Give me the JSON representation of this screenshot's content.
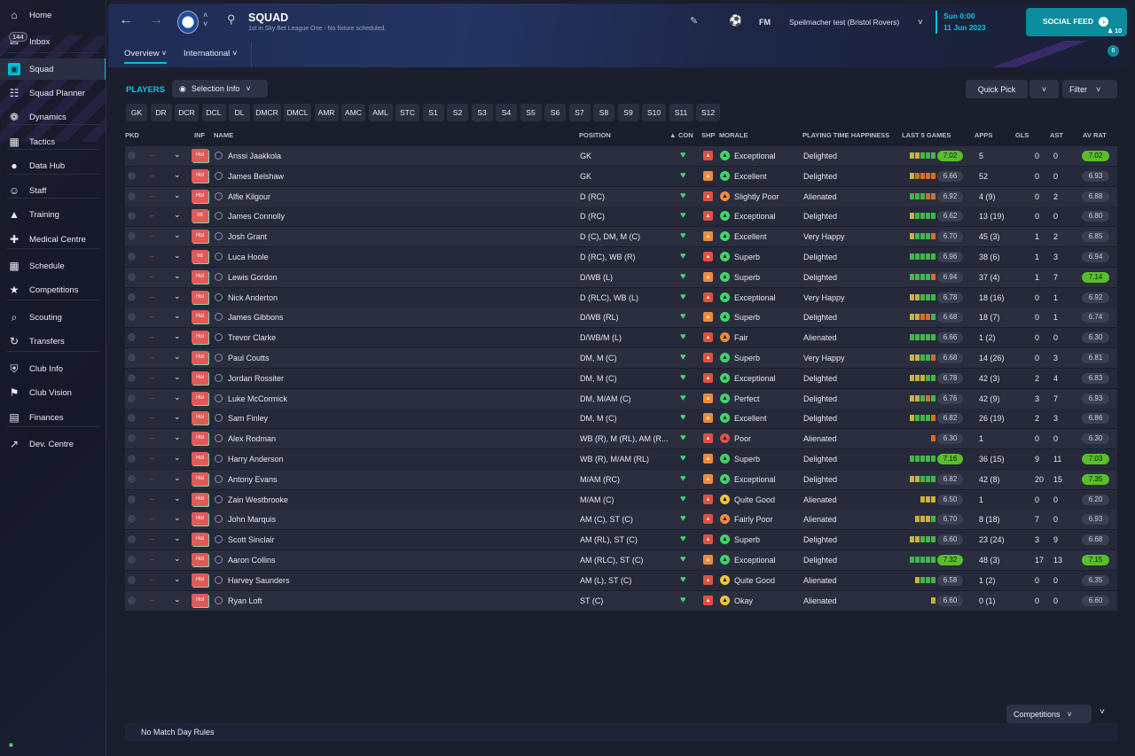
{
  "sidebar": {
    "items": [
      {
        "label": "Home",
        "icon": "home-icon"
      },
      {
        "label": "Inbox",
        "icon": "inbox-icon",
        "badge": "144"
      },
      {
        "label": "Squad",
        "icon": "squad-icon"
      },
      {
        "label": "Squad Planner",
        "icon": "clipboard-icon"
      },
      {
        "label": "Dynamics",
        "icon": "dynamics-icon"
      },
      {
        "label": "Tactics",
        "icon": "tactics-icon"
      },
      {
        "label": "Data Hub",
        "icon": "data-hub-icon"
      },
      {
        "label": "Staff",
        "icon": "staff-icon"
      },
      {
        "label": "Training",
        "icon": "training-icon"
      },
      {
        "label": "Medical Centre",
        "icon": "medical-icon"
      },
      {
        "label": "Schedule",
        "icon": "calendar-icon"
      },
      {
        "label": "Competitions",
        "icon": "trophy-icon"
      },
      {
        "label": "Scouting",
        "icon": "search-icon"
      },
      {
        "label": "Transfers",
        "icon": "transfer-icon"
      },
      {
        "label": "Club Info",
        "icon": "shield-icon"
      },
      {
        "label": "Club Vision",
        "icon": "vision-icon"
      },
      {
        "label": "Finances",
        "icon": "finances-icon"
      },
      {
        "label": "Dev. Centre",
        "icon": "dev-centre-icon"
      }
    ]
  },
  "header": {
    "title": "SQUAD",
    "subtitle": "1st in Sky Bet League One - No fixture scheduled.",
    "tabs": [
      "Overview",
      "International"
    ],
    "fm": "FM",
    "manager": "Speilmacher test (Bristol Rovers)",
    "day": "Sun 0:00",
    "date": "11 Jun 2023",
    "social": "SOCIAL FEED",
    "social_count": "10",
    "notif_count": "6"
  },
  "toolbar": {
    "players_title": "PLAYERS",
    "selection_info": "Selection Info",
    "quick_pick": "Quick Pick",
    "filter": "Filter",
    "positions": [
      "GK",
      "DR",
      "DCR",
      "DCL",
      "DL",
      "DMCR",
      "DMCL",
      "AMR",
      "AMC",
      "AML",
      "STC",
      "S1",
      "S2",
      "S3",
      "S4",
      "S5",
      "S6",
      "S7",
      "S8",
      "S9",
      "S10",
      "S11",
      "S12"
    ]
  },
  "table": {
    "headers": {
      "pkd": "PKD",
      "inf": "INF",
      "name": "NAME",
      "position": "POSITION",
      "con": "CON",
      "shp": "SHP",
      "morale": "MORALE",
      "pth": "PLAYING TIME HAPPINESS",
      "last5": "LAST 5 GAMES",
      "apps": "APPS",
      "gls": "GLS",
      "ast": "AST",
      "avrat": "AV RAT"
    },
    "rows": [
      {
        "inf": "Hol",
        "name": "Anssi Jaakkola",
        "position": "GK",
        "shp": "red",
        "morale": "Exceptional",
        "mcol": "green",
        "pth": "Delighted",
        "form": "yyggg",
        "fv": "7.02",
        "fvhi": true,
        "apps": "5",
        "gls": "0",
        "ast": "0",
        "rat": "7.02",
        "rathi": true
      },
      {
        "inf": "Hol",
        "name": "James Belshaw",
        "position": "GK",
        "shp": "orange",
        "morale": "Excellent",
        "mcol": "green",
        "pth": "Delighted",
        "form": "yoooo",
        "fv": "6.66",
        "apps": "52",
        "gls": "0",
        "ast": "0",
        "rat": "6.93"
      },
      {
        "inf": "Hol",
        "name": "Alfie Kilgour",
        "position": "D (RC)",
        "shp": "red",
        "morale": "Slightly Poor",
        "mcol": "orange",
        "pth": "Alienated",
        "form": "gggoo",
        "fv": "6.92",
        "apps": "4 (9)",
        "gls": "0",
        "ast": "2",
        "rat": "6.88"
      },
      {
        "inf": "Int",
        "name": "James Connolly",
        "position": "D (RC)",
        "shp": "red",
        "morale": "Exceptional",
        "mcol": "green",
        "pth": "Delighted",
        "form": "ygggg",
        "fv": "6.62",
        "apps": "13 (19)",
        "gls": "0",
        "ast": "0",
        "rat": "6.80"
      },
      {
        "inf": "Hol",
        "name": "Josh Grant",
        "position": "D (C), DM, M (C)",
        "shp": "orange",
        "morale": "Excellent",
        "mcol": "green",
        "pth": "Very Happy",
        "form": "ygggo",
        "fv": "6.70",
        "apps": "45 (3)",
        "gls": "1",
        "ast": "2",
        "rat": "6.85"
      },
      {
        "inf": "Int",
        "name": "Luca Hoole",
        "position": "D (RC), WB (R)",
        "shp": "red",
        "morale": "Superb",
        "mcol": "green",
        "pth": "Delighted",
        "form": "ggggg",
        "fv": "6.96",
        "apps": "38 (6)",
        "gls": "1",
        "ast": "3",
        "rat": "6.94"
      },
      {
        "inf": "Hol",
        "name": "Lewis Gordon",
        "position": "D/WB (L)",
        "shp": "orange",
        "morale": "Superb",
        "mcol": "green",
        "pth": "Delighted",
        "form": "ggggo",
        "fv": "6.94",
        "apps": "37 (4)",
        "gls": "1",
        "ast": "7",
        "rat": "7.14",
        "rathi": true
      },
      {
        "inf": "Hol",
        "name": "Nick Anderton",
        "position": "D (RLC), WB (L)",
        "shp": "red",
        "morale": "Exceptional",
        "mcol": "green",
        "pth": "Very Happy",
        "form": "yyggg",
        "fv": "6.78",
        "apps": "18 (16)",
        "gls": "0",
        "ast": "1",
        "rat": "6.92"
      },
      {
        "inf": "Hol",
        "name": "James Gibbons",
        "position": "D/WB (RL)",
        "shp": "orange",
        "morale": "Superb",
        "mcol": "green",
        "pth": "Delighted",
        "form": "yyoog",
        "fv": "6.68",
        "apps": "18 (7)",
        "gls": "0",
        "ast": "1",
        "rat": "6.74"
      },
      {
        "inf": "Hol",
        "name": "Trevor Clarke",
        "position": "D/WB/M (L)",
        "shp": "red",
        "morale": "Fair",
        "mcol": "orange",
        "pth": "Alienated",
        "form": "ggggg",
        "fv": "6.66",
        "apps": "1 (2)",
        "gls": "0",
        "ast": "0",
        "rat": "6.30"
      },
      {
        "inf": "Hol",
        "name": "Paul Coutts",
        "position": "DM, M (C)",
        "shp": "red",
        "morale": "Superb",
        "mcol": "green",
        "pth": "Very Happy",
        "form": "yyggo",
        "fv": "6.68",
        "apps": "14 (26)",
        "gls": "0",
        "ast": "3",
        "rat": "6.81"
      },
      {
        "inf": "Hol",
        "name": "Jordan Rossiter",
        "position": "DM, M (C)",
        "shp": "red",
        "morale": "Exceptional",
        "mcol": "green",
        "pth": "Delighted",
        "form": "yyygg",
        "fv": "6.78",
        "apps": "42 (3)",
        "gls": "2",
        "ast": "4",
        "rat": "6.83"
      },
      {
        "inf": "Hol",
        "name": "Luke McCormick",
        "position": "DM, M/AM (C)",
        "shp": "orange",
        "morale": "Perfect",
        "mcol": "green",
        "pth": "Delighted",
        "form": "yygog",
        "fv": "6.76",
        "apps": "42 (9)",
        "gls": "3",
        "ast": "7",
        "rat": "6.93"
      },
      {
        "inf": "Hol",
        "name": "Sam Finley",
        "position": "DM, M (C)",
        "shp": "orange",
        "morale": "Excellent",
        "mcol": "green",
        "pth": "Delighted",
        "form": "ygggo",
        "fv": "6.82",
        "apps": "26 (19)",
        "gls": "2",
        "ast": "3",
        "rat": "6.86"
      },
      {
        "inf": "Hol",
        "name": "Alex Rodman",
        "position": "WB (R), M (RL), AM (R...",
        "shp": "red",
        "morale": "Poor",
        "mcol": "red",
        "pth": "Alienated",
        "form": "o",
        "fv": "6.30",
        "apps": "1",
        "gls": "0",
        "ast": "0",
        "rat": "6.30"
      },
      {
        "inf": "Hol",
        "name": "Harry Anderson",
        "position": "WB (R), M/AM (RL)",
        "shp": "orange",
        "morale": "Superb",
        "mcol": "green",
        "pth": "Delighted",
        "form": "ggggg",
        "fv": "7.16",
        "fvhi": true,
        "apps": "36 (15)",
        "gls": "9",
        "ast": "11",
        "rat": "7.03",
        "rathi": true
      },
      {
        "inf": "Hol",
        "name": "Antony Evans",
        "position": "M/AM (RC)",
        "shp": "orange",
        "morale": "Exceptional",
        "mcol": "green",
        "pth": "Delighted",
        "form": "yyggg",
        "fv": "6.82",
        "apps": "42 (8)",
        "gls": "20",
        "ast": "15",
        "rat": "7.35",
        "rathi": true
      },
      {
        "inf": "Hol",
        "name": "Zain Westbrooke",
        "position": "M/AM (C)",
        "shp": "red",
        "morale": "Quite Good",
        "mcol": "yellow",
        "pth": "Alienated",
        "form": "yyy",
        "fv": "6.50",
        "apps": "1",
        "gls": "0",
        "ast": "0",
        "rat": "6.20"
      },
      {
        "inf": "Hol",
        "name": "John Marquis",
        "position": "AM (C), ST (C)",
        "shp": "red",
        "morale": "Fairly Poor",
        "mcol": "orange",
        "pth": "Alienated",
        "form": "yyyg",
        "fv": "6.70",
        "apps": "8 (18)",
        "gls": "7",
        "ast": "0",
        "rat": "6.93"
      },
      {
        "inf": "Hol",
        "name": "Scott Sinclair",
        "position": "AM (RL), ST (C)",
        "shp": "red",
        "morale": "Superb",
        "mcol": "green",
        "pth": "Delighted",
        "form": "yyggg",
        "fv": "6.60",
        "apps": "23 (24)",
        "gls": "3",
        "ast": "9",
        "rat": "6.68"
      },
      {
        "inf": "Hol",
        "name": "Aaron Collins",
        "position": "AM (RLC), ST (C)",
        "shp": "orange",
        "morale": "Exceptional",
        "mcol": "green",
        "pth": "Delighted",
        "form": "ggggg",
        "fv": "7.32",
        "fvhi": true,
        "apps": "48 (3)",
        "gls": "17",
        "ast": "13",
        "rat": "7.15",
        "rathi": true
      },
      {
        "inf": "Hol",
        "name": "Harvey Saunders",
        "position": "AM (L), ST (C)",
        "shp": "red",
        "morale": "Quite Good",
        "mcol": "yellow",
        "pth": "Alienated",
        "form": "yggg",
        "fv": "6.58",
        "apps": "1 (2)",
        "gls": "0",
        "ast": "0",
        "rat": "6.35"
      },
      {
        "inf": "Hol",
        "name": "Ryan Loft",
        "position": "ST (C)",
        "shp": "red",
        "morale": "Okay",
        "mcol": "yellow",
        "pth": "Alienated",
        "form": "y",
        "fv": "6.60",
        "apps": "0 (1)",
        "gls": "0",
        "ast": "0",
        "rat": "6.60"
      }
    ]
  },
  "footer": {
    "competitions": "Competitions",
    "match_day_rules": "No Match Day Rules"
  },
  "colors": {
    "accent": "#00c0d9",
    "green": "#3fd66b",
    "red": "#e0503f",
    "orange": "#f08a3a",
    "yellow": "#f0c43a",
    "form_green": "#3fb84a",
    "form_yellow": "#c9b23a",
    "form_orange": "#d0712f",
    "hi": "#58bf2a"
  }
}
